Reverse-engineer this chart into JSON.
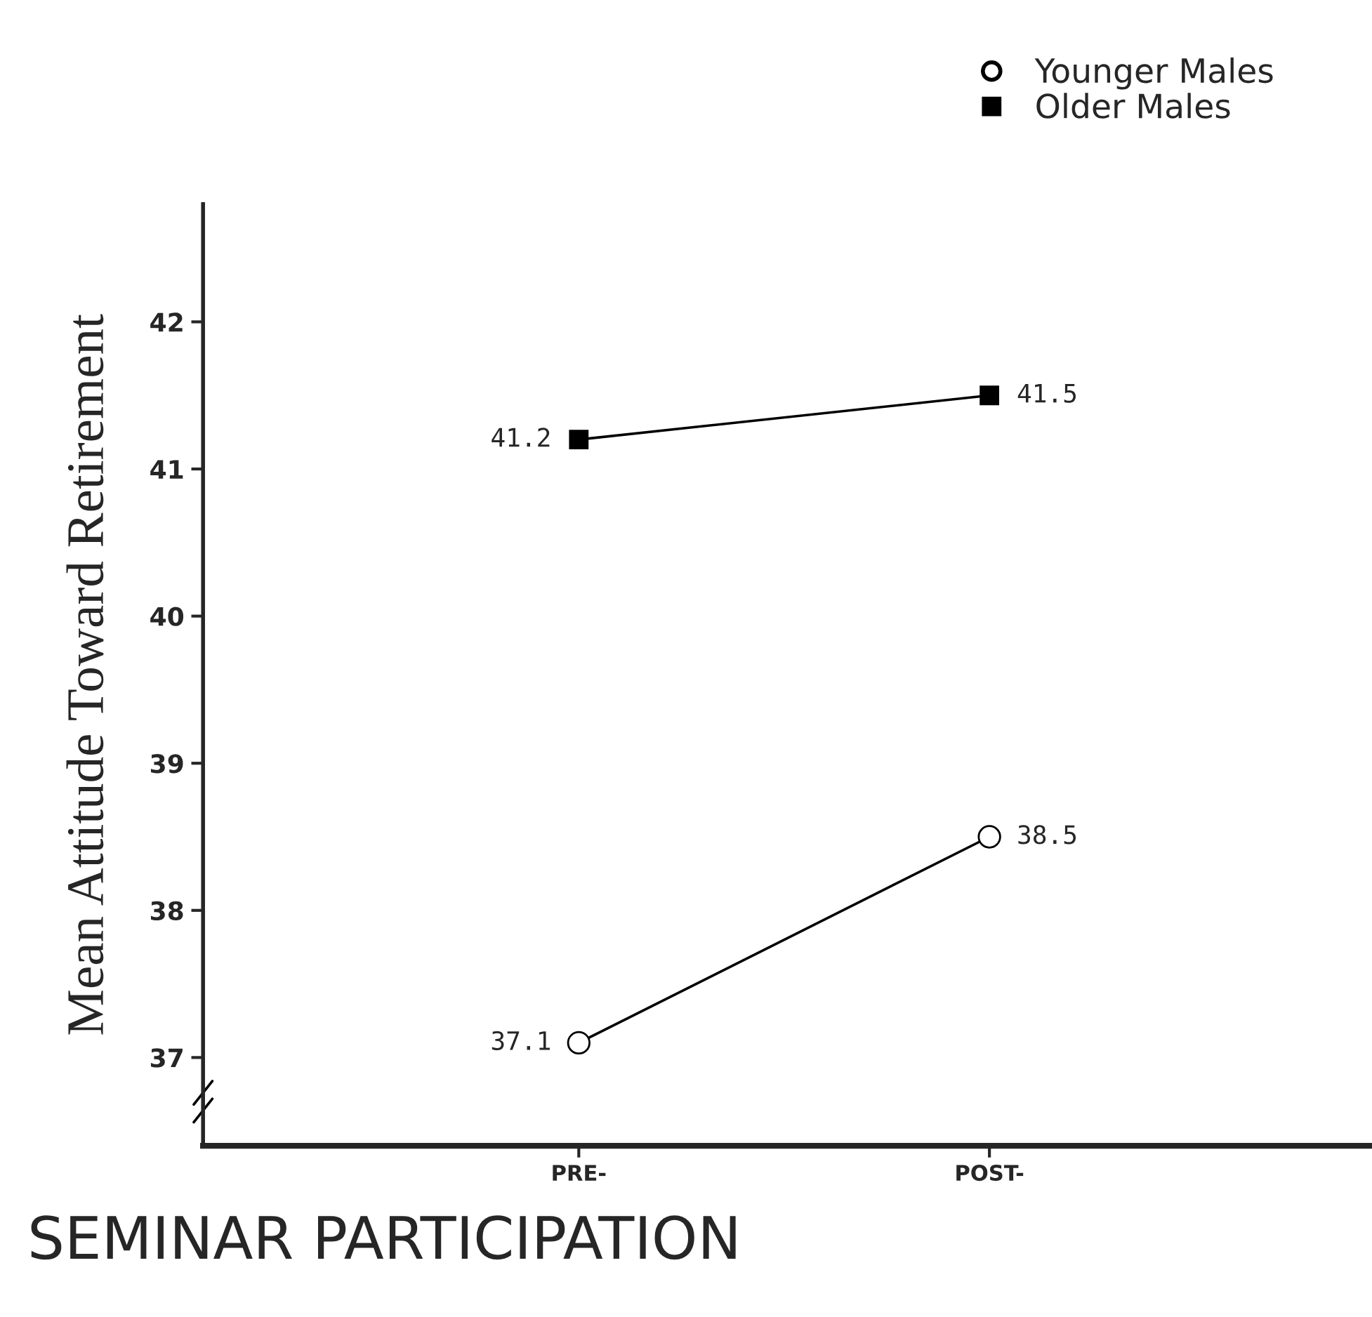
{
  "chart_data": {
    "type": "line",
    "xlabel": "SEMINAR PARTICIPATION",
    "ylabel": "Mean Attitude Toward Retirement",
    "categories": [
      "PRE-",
      "POST-"
    ],
    "series": [
      {
        "name": "Younger Males",
        "color": "#000000",
        "marker": "circle",
        "values": [
          37.1,
          38.5
        ]
      },
      {
        "name": "Older Males",
        "color": "#000000",
        "marker": "square",
        "values": [
          41.2,
          41.5
        ]
      }
    ],
    "ylim": [
      36.4,
      42.8
    ],
    "yticks": [
      37,
      38,
      39,
      40,
      41,
      42
    ],
    "data_labels": true,
    "legend": "top right",
    "grid": false,
    "line_style": "solid"
  }
}
